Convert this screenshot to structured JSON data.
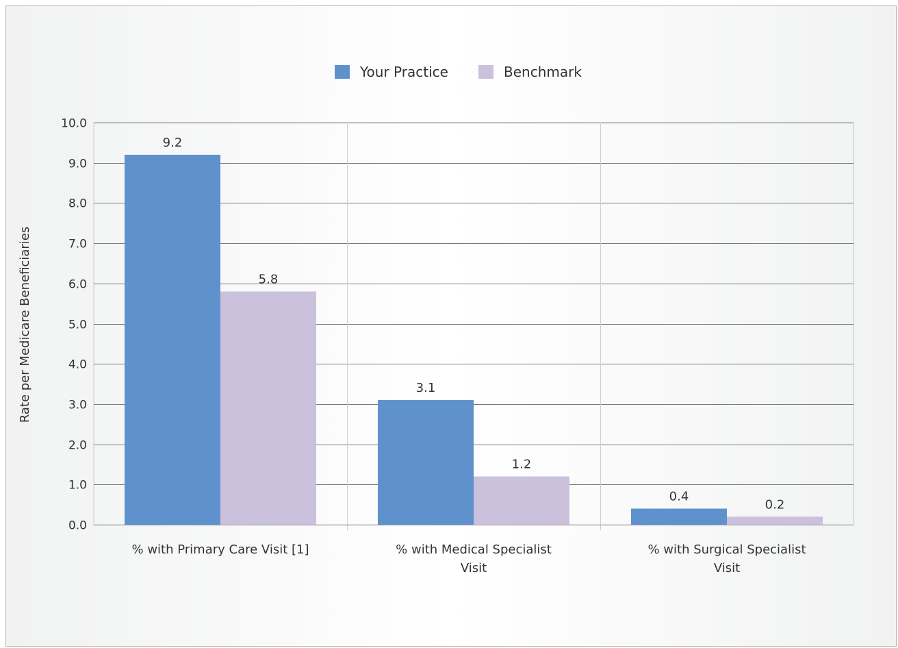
{
  "chart_data": {
    "type": "bar",
    "categories": [
      "% with Primary Care Visit [1]",
      "% with Medical Specialist Visit",
      "% with Surgical Specialist Visit"
    ],
    "category_lines": [
      [
        "% with Primary Care Visit [1]"
      ],
      [
        "% with Medical Specialist",
        "Visit"
      ],
      [
        "% with Surgical Specialist",
        "Visit"
      ]
    ],
    "series": [
      {
        "name": "Your Practice",
        "values": [
          9.2,
          3.1,
          0.4
        ],
        "color": "#5f91cd"
      },
      {
        "name": "Benchmark",
        "values": [
          5.8,
          1.2,
          0.2
        ],
        "color": "#cbc1dd"
      }
    ],
    "data_labels": [
      [
        "9.2",
        "3.1",
        "0.4"
      ],
      [
        "5.8",
        "1.2",
        "0.2"
      ]
    ],
    "yticks": [
      "0.0",
      "1.0",
      "2.0",
      "3.0",
      "4.0",
      "5.0",
      "6.0",
      "7.0",
      "8.0",
      "9.0",
      "10.0"
    ],
    "ylim": [
      0,
      10
    ],
    "ylabel": "Rate per Medicare Beneficiaries",
    "xlabel": "",
    "title": "",
    "legend": "top",
    "grid": true
  }
}
